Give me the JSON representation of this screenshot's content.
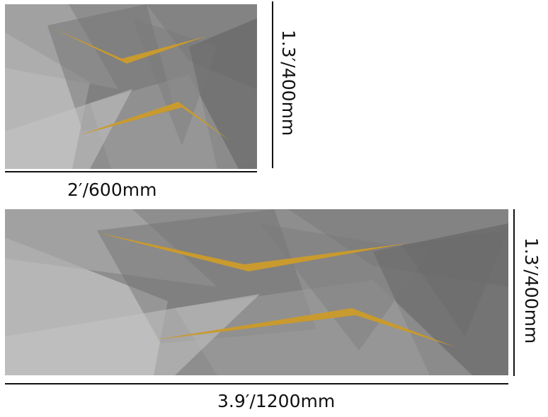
{
  "rugs": {
    "small": {
      "width_label": "2′/600mm",
      "height_label": "1.3′/400mm"
    },
    "large": {
      "width_label": "3.9′/1200mm",
      "height_label": "1.3′/400mm"
    }
  },
  "colors": {
    "base_gray": "#8d8d8d",
    "gold_accent": "#c99a2e",
    "line": "#111111"
  }
}
